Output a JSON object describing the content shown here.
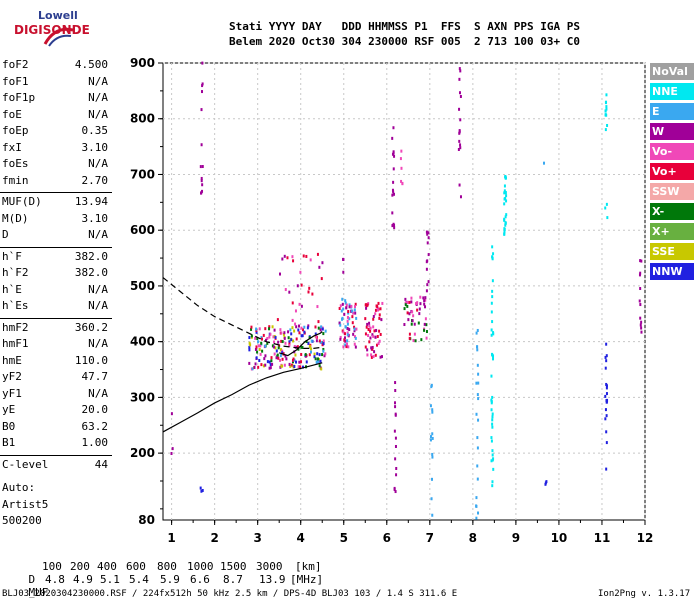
{
  "logo": {
    "line1": "Lowell",
    "line2": "DIGISONDE"
  },
  "header": {
    "row1": "Stati YYYY DAY   DDD HHMMSS P1  FFS  S AXN PPS IGA PS",
    "row2": "Belem 2020 Oct30 304 230000 RSF 005  2 713 100 03+ C0"
  },
  "params": [
    {
      "name": "foF2",
      "value": "4.500"
    },
    {
      "name": "foF1",
      "value": "N/A"
    },
    {
      "name": "foF1p",
      "value": "N/A"
    },
    {
      "name": "foE",
      "value": "N/A"
    },
    {
      "name": "foEp",
      "value": "0.35"
    },
    {
      "name": "fxI",
      "value": "3.10"
    },
    {
      "name": "foEs",
      "value": "N/A"
    },
    {
      "name": "fmin",
      "value": "2.70"
    },
    {
      "name": "MUF(D)",
      "value": "13.94"
    },
    {
      "name": "M(D)",
      "value": "3.10"
    },
    {
      "name": "D",
      "value": "N/A"
    },
    {
      "name": "h`F",
      "value": "382.0"
    },
    {
      "name": "h`F2",
      "value": "382.0"
    },
    {
      "name": "h`E",
      "value": "N/A"
    },
    {
      "name": "h`Es",
      "value": "N/A"
    },
    {
      "name": "hmF2",
      "value": "360.2"
    },
    {
      "name": "hmF1",
      "value": "N/A"
    },
    {
      "name": "hmE",
      "value": "110.0"
    },
    {
      "name": "yF2",
      "value": "47.7"
    },
    {
      "name": "yF1",
      "value": "N/A"
    },
    {
      "name": "yE",
      "value": "20.0"
    },
    {
      "name": "B0",
      "value": "63.2"
    },
    {
      "name": "B1",
      "value": "1.00"
    },
    {
      "name": "C-level",
      "value": "44"
    }
  ],
  "auto": {
    "line1": "Auto:",
    "line2": "Artist5",
    "line3": "500200"
  },
  "legend": [
    {
      "label": "NoVal",
      "color": "#a0a0a0"
    },
    {
      "label": "NNE",
      "color": "#00e8f0"
    },
    {
      "label": "E",
      "color": "#3aa8f0"
    },
    {
      "label": "W",
      "color": "#a00098"
    },
    {
      "label": "Vo-",
      "color": "#f048b8"
    },
    {
      "label": "Vo+",
      "color": "#e8003a"
    },
    {
      "label": "SSW",
      "color": "#f4a8a8"
    },
    {
      "label": "X-",
      "color": "#00780a"
    },
    {
      "label": "X+",
      "color": "#68b040"
    },
    {
      "label": "SSE",
      "color": "#c8c800"
    },
    {
      "label": "NNW",
      "color": "#2020e0"
    }
  ],
  "muf_table": {
    "d_label": "D",
    "d_values": [
      "100",
      "200",
      "400",
      "600",
      "800",
      "1000",
      "1500",
      "3000"
    ],
    "d_unit": "[km]",
    "muf_label": "MUF",
    "muf_values": [
      "4.8",
      "4.9",
      "5.1",
      "5.4",
      "5.9",
      "6.6",
      "8.7",
      "13.9"
    ],
    "muf_unit": "[MHz]"
  },
  "footer": {
    "left": "BLJ03_2020304230000.RSF / 224fx512h 50 kHz 2.5 km / DPS-4D BLJ03 103 / 1.4 S 311.6 E",
    "right": "Ion2Png v. 1.3.17"
  },
  "chart_data": {
    "type": "scatter",
    "title": "",
    "xlabel": "",
    "ylabel": "",
    "xlim": [
      0.8,
      12.0
    ],
    "ylim": [
      80,
      900
    ],
    "x_ticks": [
      1,
      2,
      3,
      4,
      5,
      6,
      7,
      8,
      9,
      10,
      11,
      12
    ],
    "y_ticks": [
      200,
      300,
      400,
      500,
      600,
      700,
      800,
      900
    ],
    "y_tick_labels_extra": [
      80
    ],
    "grid": true,
    "lines": [
      {
        "name": "dashed",
        "style": "dashed",
        "x": [
          0.8,
          1.2,
          1.6,
          2.0,
          2.4,
          2.8,
          3.2,
          3.6,
          4.0,
          4.3,
          4.5
        ],
        "y": [
          515,
          490,
          465,
          445,
          430,
          415,
          400,
          392,
          388,
          388,
          390
        ]
      },
      {
        "name": "solid",
        "style": "solid",
        "x": [
          0.8,
          1.2,
          1.6,
          2.0,
          2.4,
          2.8,
          3.2,
          3.6,
          4.0,
          4.3,
          4.5
        ],
        "y": [
          238,
          255,
          272,
          290,
          305,
          322,
          335,
          345,
          352,
          358,
          362
        ]
      },
      {
        "name": "solid2",
        "style": "solid",
        "x": [
          3.5,
          3.7,
          3.9,
          4.1,
          4.3,
          4.45,
          4.5
        ],
        "y": [
          380,
          375,
          385,
          400,
          410,
          415,
          418
        ]
      }
    ],
    "clusters": [
      {
        "x": [
          2.8,
          4.6
        ],
        "y": [
          350,
          430
        ],
        "count": 220,
        "colors": [
          "#f048b8",
          "#e8003a",
          "#a00098",
          "#3aa8f0",
          "#00780a",
          "#c8c800",
          "#2020e0"
        ]
      },
      {
        "x": [
          4.9,
          5.3
        ],
        "y": [
          390,
          480
        ],
        "count": 70,
        "colors": [
          "#3aa8f0",
          "#f048b8",
          "#e8003a",
          "#a00098"
        ]
      },
      {
        "x": [
          5.5,
          5.9
        ],
        "y": [
          370,
          470
        ],
        "count": 60,
        "colors": [
          "#f048b8",
          "#e8003a",
          "#a00098"
        ]
      },
      {
        "x": [
          6.4,
          6.95
        ],
        "y": [
          400,
          480
        ],
        "count": 50,
        "colors": [
          "#00780a",
          "#e8003a",
          "#f048b8",
          "#a00098"
        ]
      },
      {
        "x": [
          3.4,
          4.6
        ],
        "y": [
          430,
          560
        ],
        "count": 30,
        "colors": [
          "#e8003a",
          "#a00098",
          "#f048b8"
        ]
      }
    ],
    "columns": [
      {
        "x": 1.7,
        "y": [
          650,
          900
        ],
        "count": 14,
        "color": "#a00098"
      },
      {
        "x": 1.7,
        "y": [
          130,
          150
        ],
        "count": 3,
        "color": "#2020e0"
      },
      {
        "x": 6.15,
        "y": [
          600,
          790
        ],
        "count": 18,
        "color": "#a00098"
      },
      {
        "x": 6.2,
        "y": [
          100,
          350
        ],
        "count": 15,
        "color": "#a00098"
      },
      {
        "x": 6.35,
        "y": [
          660,
          760
        ],
        "count": 6,
        "color": "#f048b8"
      },
      {
        "x": 6.95,
        "y": [
          490,
          600
        ],
        "count": 12,
        "color": "#a00098"
      },
      {
        "x": 7.05,
        "y": [
          80,
          340
        ],
        "count": 14,
        "color": "#3aa8f0"
      },
      {
        "x": 7.7,
        "y": [
          650,
          890
        ],
        "count": 16,
        "color": "#a00098"
      },
      {
        "x": 8.1,
        "y": [
          80,
          440
        ],
        "count": 22,
        "color": "#3aa8f0"
      },
      {
        "x": 8.45,
        "y": [
          140,
          580
        ],
        "count": 40,
        "color": "#00e8f0"
      },
      {
        "x": 8.75,
        "y": [
          590,
          700
        ],
        "count": 25,
        "color": "#00e8f0"
      },
      {
        "x": 9.65,
        "y": [
          720,
          725
        ],
        "count": 1,
        "color": "#3aa8f0"
      },
      {
        "x": 9.7,
        "y": [
          130,
          150
        ],
        "count": 3,
        "color": "#2020e0"
      },
      {
        "x": 11.1,
        "y": [
          780,
          850
        ],
        "count": 12,
        "color": "#00e8f0"
      },
      {
        "x": 11.1,
        "y": [
          170,
          400
        ],
        "count": 20,
        "color": "#2020e0"
      },
      {
        "x": 11.1,
        "y": [
          620,
          650
        ],
        "count": 3,
        "color": "#00e8f0"
      },
      {
        "x": 11.9,
        "y": [
          380,
          550
        ],
        "count": 12,
        "color": "#a00098"
      },
      {
        "x": 5.0,
        "y": [
          520,
          560
        ],
        "count": 3,
        "color": "#a00098"
      },
      {
        "x": 1.0,
        "y": [
          100,
          300
        ],
        "count": 3,
        "color": "#a00098"
      }
    ]
  }
}
